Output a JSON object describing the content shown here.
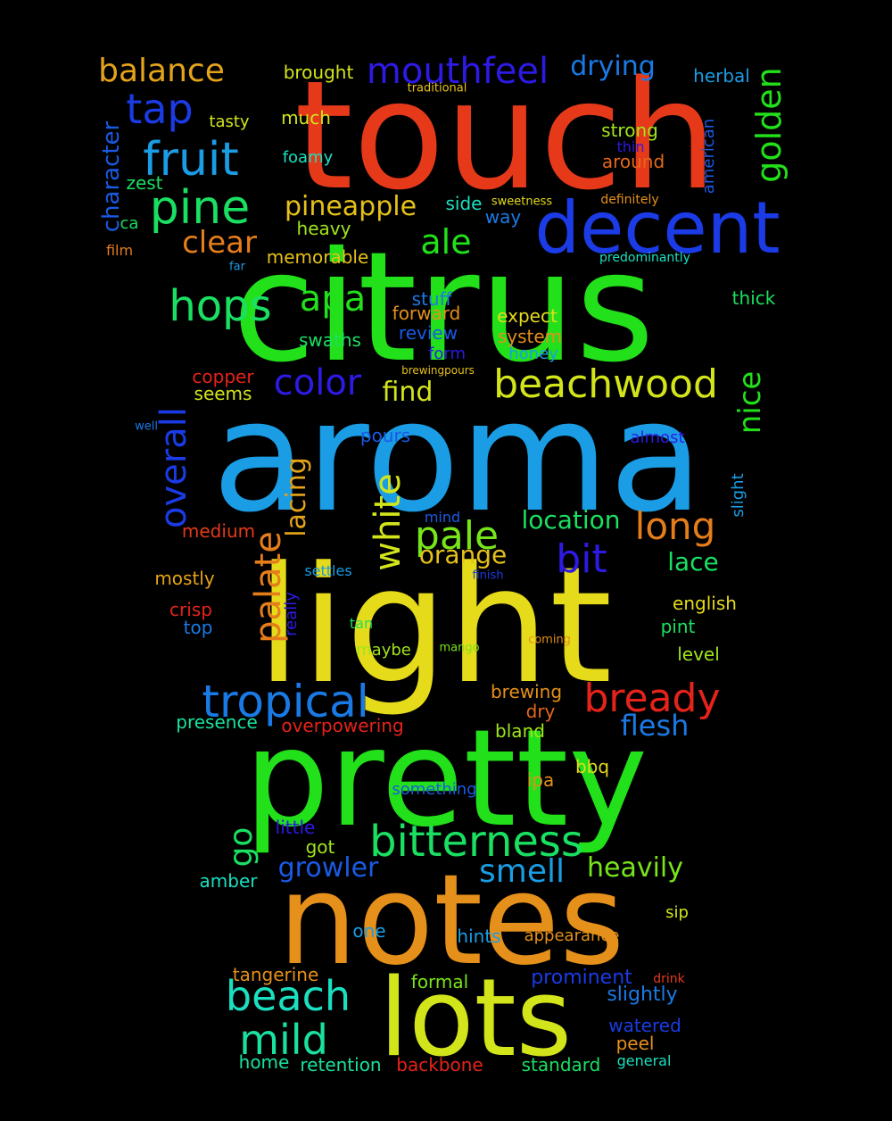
{
  "words": [
    {
      "text": "touch",
      "color": "#e5391a"
    },
    {
      "text": "citrus",
      "color": "#22e01a"
    },
    {
      "text": "aroma",
      "color": "#1a9de5"
    },
    {
      "text": "light",
      "color": "#e5db1a"
    },
    {
      "text": "pretty",
      "color": "#22e01a"
    },
    {
      "text": "notes",
      "color": "#e5901a"
    },
    {
      "text": "lots",
      "color": "#d2e51a"
    },
    {
      "text": "decent",
      "color": "#1a3be5"
    },
    {
      "text": "beachwood",
      "color": "#d2e51a"
    },
    {
      "text": "bitterness",
      "color": "#1ae062"
    },
    {
      "text": "tropical",
      "color": "#1a7ae5"
    },
    {
      "text": "mouthfeel",
      "color": "#2d1ae5"
    },
    {
      "text": "bready",
      "color": "#e5231a"
    },
    {
      "text": "fruit",
      "color": "#1a9de5"
    },
    {
      "text": "pine",
      "color": "#1ae062"
    },
    {
      "text": "hops",
      "color": "#1ae062"
    },
    {
      "text": "apa",
      "color": "#22e01a"
    },
    {
      "text": "ale",
      "color": "#22e01a"
    },
    {
      "text": "color",
      "color": "#2d1ae5"
    },
    {
      "text": "pale",
      "color": "#78e51a"
    },
    {
      "text": "bit",
      "color": "#2d1ae5"
    },
    {
      "text": "long",
      "color": "#e57d1a"
    },
    {
      "text": "beach",
      "color": "#1ae0c0"
    },
    {
      "text": "mild",
      "color": "#1ae0a0"
    },
    {
      "text": "tap",
      "color": "#1a3be5"
    },
    {
      "text": "balance",
      "color": "#e5a31a"
    },
    {
      "text": "clear",
      "color": "#e57d1a"
    },
    {
      "text": "find",
      "color": "#d2e51a"
    },
    {
      "text": "overall",
      "color": "#1a3be5"
    },
    {
      "text": "palate",
      "color": "#e57d1a"
    },
    {
      "text": "white",
      "color": "#d2e51a"
    },
    {
      "text": "lacing",
      "color": "#e5a31a"
    },
    {
      "text": "golden",
      "color": "#22e01a"
    },
    {
      "text": "nice",
      "color": "#22e01a"
    },
    {
      "text": "drying",
      "color": "#1a7ae5"
    },
    {
      "text": "pineapple",
      "color": "#e5c01a"
    },
    {
      "text": "location",
      "color": "#1ae062"
    },
    {
      "text": "orange",
      "color": "#e5c01a"
    },
    {
      "text": "lace",
      "color": "#1ae062"
    },
    {
      "text": "flesh",
      "color": "#1a7ae5"
    },
    {
      "text": "smell",
      "color": "#1a9de5"
    },
    {
      "text": "heavily",
      "color": "#78e51a"
    },
    {
      "text": "growler",
      "color": "#1a5ae5"
    },
    {
      "text": "go",
      "color": "#1ae062"
    },
    {
      "text": "character",
      "color": "#1a5ae5"
    },
    {
      "text": "brought",
      "color": "#d2e51a"
    },
    {
      "text": "traditional",
      "color": "#e5c01a"
    },
    {
      "text": "herbal",
      "color": "#1a9de5"
    },
    {
      "text": "strong",
      "color": "#a0e51a"
    },
    {
      "text": "thin",
      "color": "#2d1ae5"
    },
    {
      "text": "around",
      "color": "#e5671a"
    },
    {
      "text": "american",
      "color": "#1a5ae5"
    },
    {
      "text": "definitely",
      "color": "#e5901a"
    },
    {
      "text": "sweetness",
      "color": "#e5db1a"
    },
    {
      "text": "side",
      "color": "#1ae0c0"
    },
    {
      "text": "way",
      "color": "#1a7ae5"
    },
    {
      "text": "predominantly",
      "color": "#1ae0c0"
    },
    {
      "text": "thick",
      "color": "#1ae062"
    },
    {
      "text": "expect",
      "color": "#e5db1a"
    },
    {
      "text": "system",
      "color": "#e5901a"
    },
    {
      "text": "honey",
      "color": "#1a9de5"
    },
    {
      "text": "brewingpours",
      "color": "#e5c01a"
    },
    {
      "text": "almost",
      "color": "#2d1ae5"
    },
    {
      "text": "slight",
      "color": "#1a9de5"
    },
    {
      "text": "tasty",
      "color": "#d2e51a"
    },
    {
      "text": "much",
      "color": "#d2e51a"
    },
    {
      "text": "foamy",
      "color": "#1ae0c0"
    },
    {
      "text": "zest",
      "color": "#1ae062"
    },
    {
      "text": "ca",
      "color": "#1ae062"
    },
    {
      "text": "film",
      "color": "#e57d1a"
    },
    {
      "text": "far",
      "color": "#1a9de5"
    },
    {
      "text": "heavy",
      "color": "#a0e51a"
    },
    {
      "text": "memorable",
      "color": "#e5c01a"
    },
    {
      "text": "stuff",
      "color": "#1a7ae5"
    },
    {
      "text": "forward",
      "color": "#e5901a"
    },
    {
      "text": "swaths",
      "color": "#1ae062"
    },
    {
      "text": "review",
      "color": "#1a5ae5"
    },
    {
      "text": "form",
      "color": "#2d1ae5"
    },
    {
      "text": "copper",
      "color": "#e5231a"
    },
    {
      "text": "seems",
      "color": "#d2e51a"
    },
    {
      "text": "well",
      "color": "#1a7ae5"
    },
    {
      "text": "pours",
      "color": "#1a5ae5"
    },
    {
      "text": "medium",
      "color": "#e5391a"
    },
    {
      "text": "mostly",
      "color": "#e5a31a"
    },
    {
      "text": "crisp",
      "color": "#e5231a"
    },
    {
      "text": "top",
      "color": "#1a7ae5"
    },
    {
      "text": "mind",
      "color": "#1a5ae5"
    },
    {
      "text": "settles",
      "color": "#1a9de5"
    },
    {
      "text": "finish",
      "color": "#1a3be5"
    },
    {
      "text": "really",
      "color": "#2d1ae5"
    },
    {
      "text": "tan",
      "color": "#1ae062"
    },
    {
      "text": "maybe",
      "color": "#a0e51a"
    },
    {
      "text": "mango",
      "color": "#78e51a"
    },
    {
      "text": "coming",
      "color": "#e5901a"
    },
    {
      "text": "english",
      "color": "#e5db1a"
    },
    {
      "text": "pint",
      "color": "#1ae062"
    },
    {
      "text": "level",
      "color": "#a0e51a"
    },
    {
      "text": "brewing",
      "color": "#e5901a"
    },
    {
      "text": "dry",
      "color": "#e5671a"
    },
    {
      "text": "bland",
      "color": "#a0e51a"
    },
    {
      "text": "presence",
      "color": "#1ae0a0"
    },
    {
      "text": "overpowering",
      "color": "#e5231a"
    },
    {
      "text": "bbq",
      "color": "#e5db1a"
    },
    {
      "text": "ipa",
      "color": "#e5901a"
    },
    {
      "text": "something",
      "color": "#1a5ae5"
    },
    {
      "text": "little",
      "color": "#2d1ae5"
    },
    {
      "text": "got",
      "color": "#a0e51a"
    },
    {
      "text": "amber",
      "color": "#1ae0c0"
    },
    {
      "text": "one",
      "color": "#1a9de5"
    },
    {
      "text": "hints",
      "color": "#1a9de5"
    },
    {
      "text": "appearance",
      "color": "#e5901a"
    },
    {
      "text": "sip",
      "color": "#d2e51a"
    },
    {
      "text": "tangerine",
      "color": "#e5901a"
    },
    {
      "text": "formal",
      "color": "#78e51a"
    },
    {
      "text": "prominent",
      "color": "#1a3be5"
    },
    {
      "text": "drink",
      "color": "#e5391a"
    },
    {
      "text": "slightly",
      "color": "#1a7ae5"
    },
    {
      "text": "watered",
      "color": "#1a3be5"
    },
    {
      "text": "peel",
      "color": "#e5901a"
    },
    {
      "text": "home",
      "color": "#1ae0a0"
    },
    {
      "text": "retention",
      "color": "#1ae0a0"
    },
    {
      "text": "backbone",
      "color": "#e5231a"
    },
    {
      "text": "standard",
      "color": "#1ae062"
    },
    {
      "text": "general",
      "color": "#1ae0c0"
    }
  ]
}
